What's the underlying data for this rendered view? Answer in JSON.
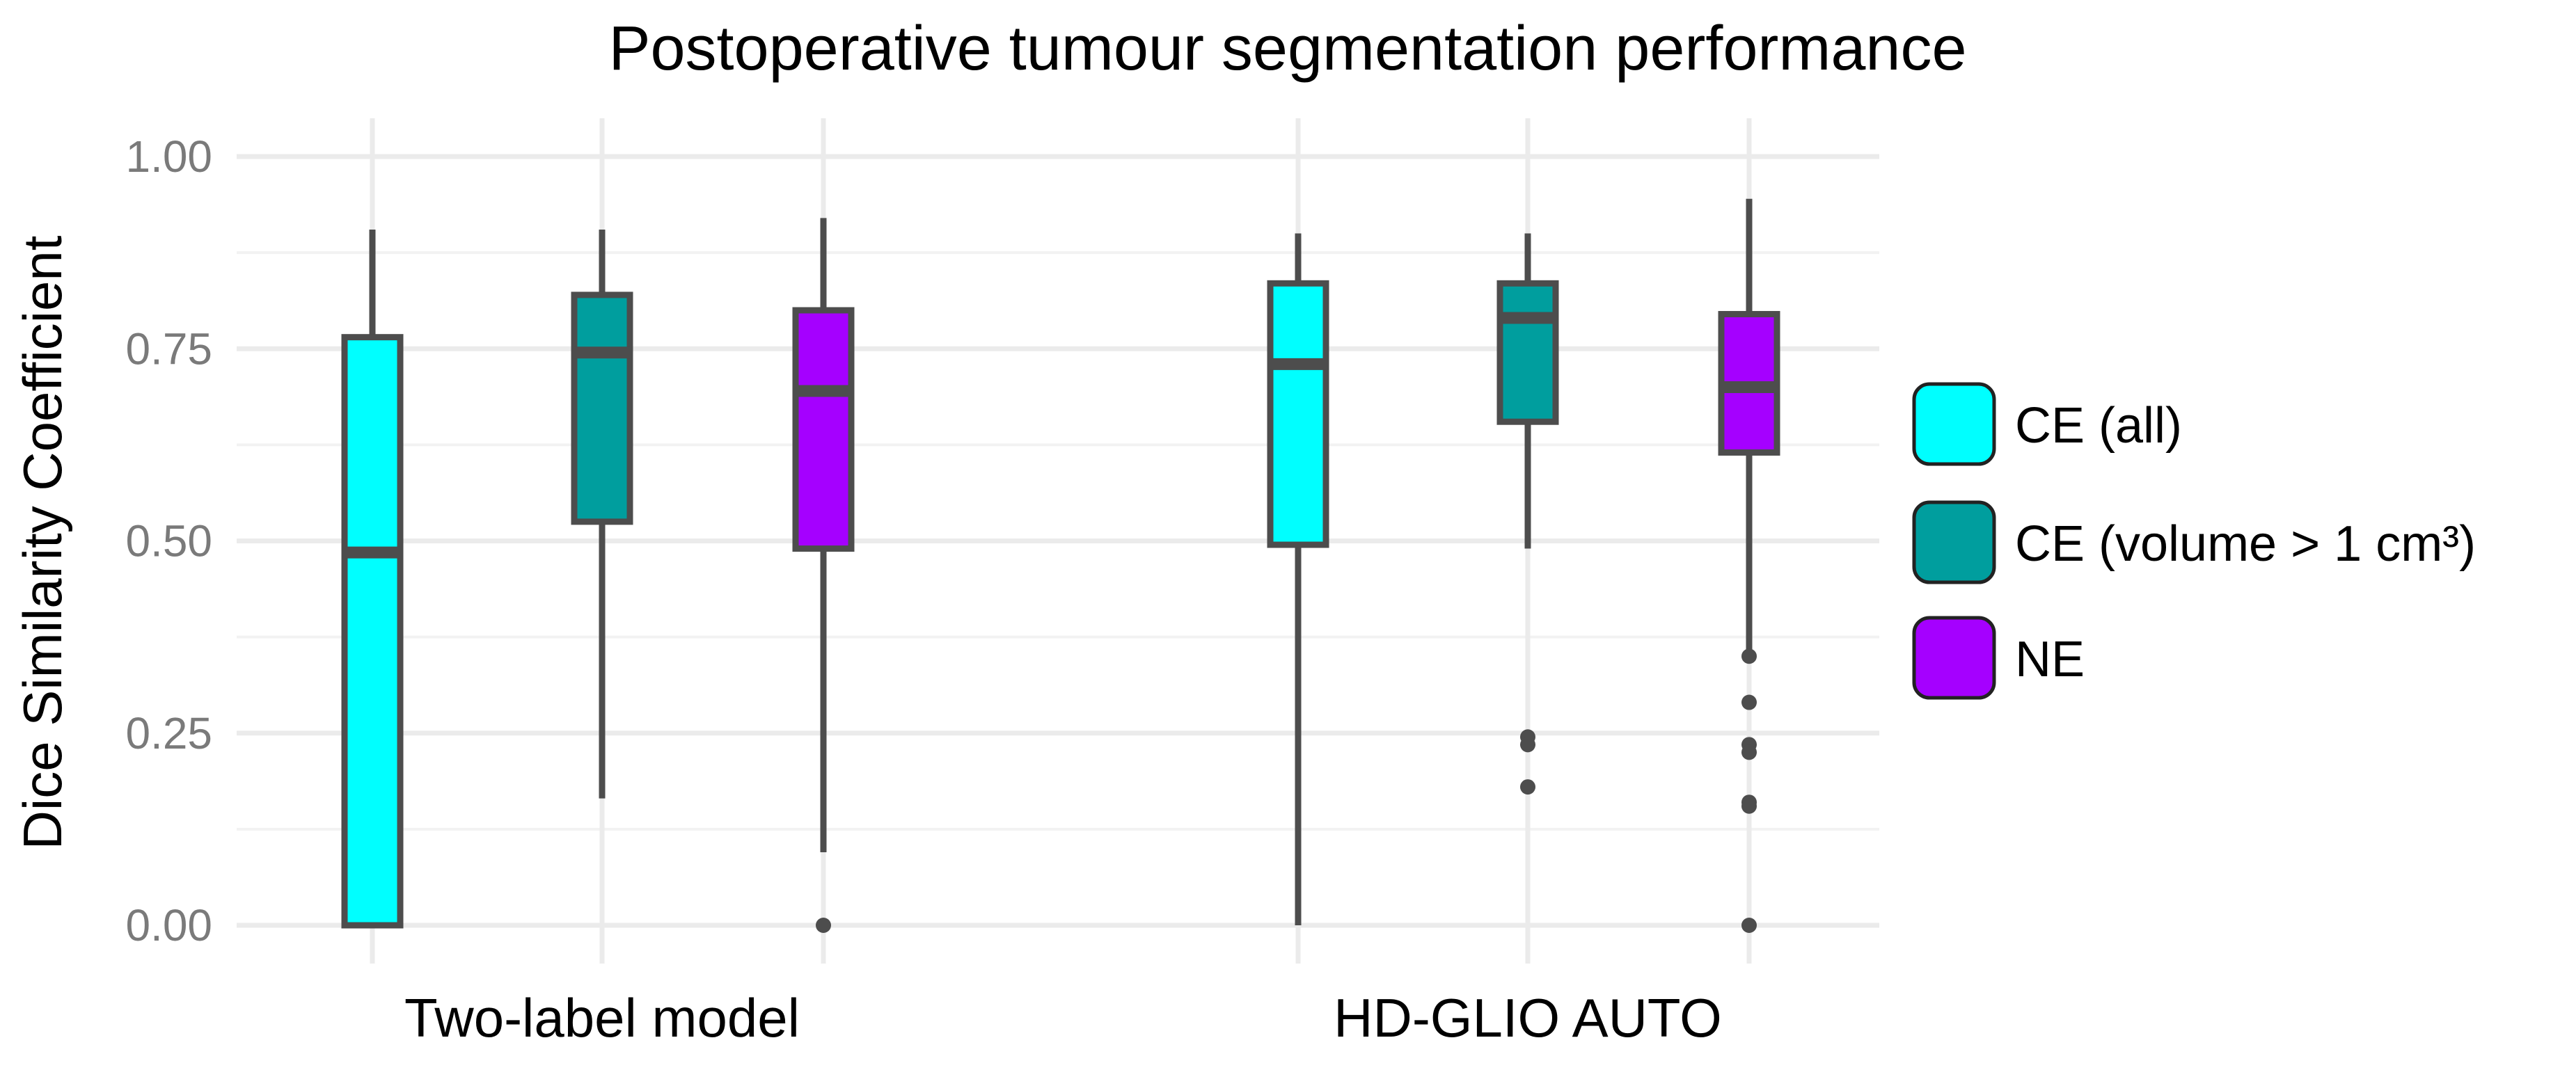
{
  "chart_data": {
    "type": "box",
    "title": "Postoperative tumour segmentation performance",
    "xlabel": "",
    "ylabel": "Dice Similarity Coefficient",
    "ylim": [
      0,
      1
    ],
    "yticks": [
      "0.00",
      "0.25",
      "0.50",
      "0.75",
      "1.00"
    ],
    "grid": true,
    "legend_position": "right",
    "categories": [
      "Two-label model",
      "HD-GLIO AUTO"
    ],
    "series": [
      {
        "name": "CE (all)",
        "color": "#00ffff",
        "boxes": [
          {
            "whisker_low": 0.0,
            "q1": 0.0,
            "median": 0.485,
            "q3": 0.765,
            "whisker_high": 0.905,
            "outliers": []
          },
          {
            "whisker_low": 0.0,
            "q1": 0.495,
            "median": 0.73,
            "q3": 0.835,
            "whisker_high": 0.9,
            "outliers": []
          }
        ]
      },
      {
        "name": "CE (volume > 1 cm³)",
        "color": "#009e9e",
        "boxes": [
          {
            "whisker_low": 0.165,
            "q1": 0.525,
            "median": 0.745,
            "q3": 0.82,
            "whisker_high": 0.905,
            "outliers": []
          },
          {
            "whisker_low": 0.49,
            "q1": 0.655,
            "median": 0.79,
            "q3": 0.835,
            "whisker_high": 0.9,
            "outliers": [
              0.245,
              0.235,
              0.18
            ]
          }
        ]
      },
      {
        "name": "NE",
        "color": "#a500ff",
        "boxes": [
          {
            "whisker_low": 0.095,
            "q1": 0.49,
            "median": 0.695,
            "q3": 0.8,
            "whisker_high": 0.92,
            "outliers": [
              0.0
            ]
          },
          {
            "whisker_low": 0.35,
            "q1": 0.615,
            "median": 0.7,
            "q3": 0.795,
            "whisker_high": 0.945,
            "outliers": [
              0.35,
              0.29,
              0.235,
              0.225,
              0.16,
              0.155,
              0.0
            ]
          }
        ]
      }
    ]
  }
}
